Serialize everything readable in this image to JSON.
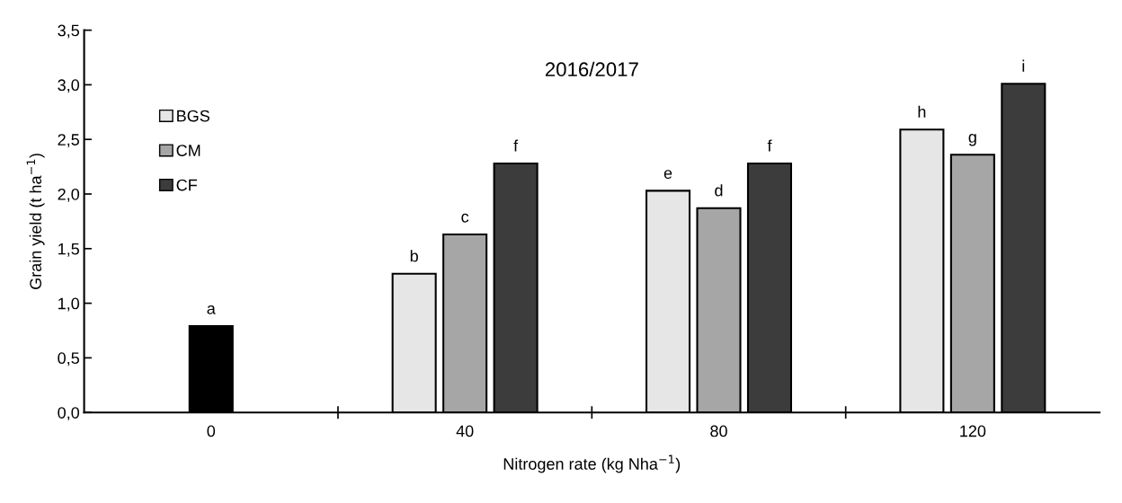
{
  "chart_data": {
    "type": "bar",
    "title": "2016/2017",
    "xlabel": "Nitrogen rate (kg Nha$^{−1}$)",
    "ylabel": "Grain yield (t ha$^{−1}$)",
    "categories": [
      "0",
      "40",
      "80",
      "120"
    ],
    "series": [
      {
        "color": "#000000",
        "values": [
          0.79,
          null,
          null,
          null
        ],
        "value_labels": [
          "a",
          null,
          null,
          null
        ]
      },
      {
        "name": "BGS",
        "color": "#e6e6e6",
        "values": [
          null,
          1.27,
          2.03,
          2.59
        ],
        "value_labels": [
          null,
          "b",
          "e",
          "h"
        ]
      },
      {
        "name": "CM",
        "color": "#a6a6a6",
        "values": [
          null,
          1.63,
          1.87,
          2.36
        ],
        "value_labels": [
          null,
          "c",
          "d",
          "g"
        ]
      },
      {
        "name": "CF",
        "color": "#3c3c3c",
        "values": [
          null,
          2.28,
          2.28,
          3.01
        ],
        "value_labels": [
          null,
          "f",
          "f",
          "i"
        ]
      }
    ],
    "ylim": [
      0,
      3.5
    ],
    "yticks": [
      {
        "value": 0,
        "label": "0,0"
      },
      {
        "value": 0.5,
        "label": "0,5"
      },
      {
        "value": 1,
        "label": "1,0"
      },
      {
        "value": 1.5,
        "label": "1,5"
      },
      {
        "value": 2,
        "label": "2,0"
      },
      {
        "value": 2.5,
        "label": "2,5"
      },
      {
        "value": 3,
        "label": "3,0"
      },
      {
        "value": 3.5,
        "label": "3,5"
      }
    ],
    "grid": false,
    "legend": "top left"
  }
}
